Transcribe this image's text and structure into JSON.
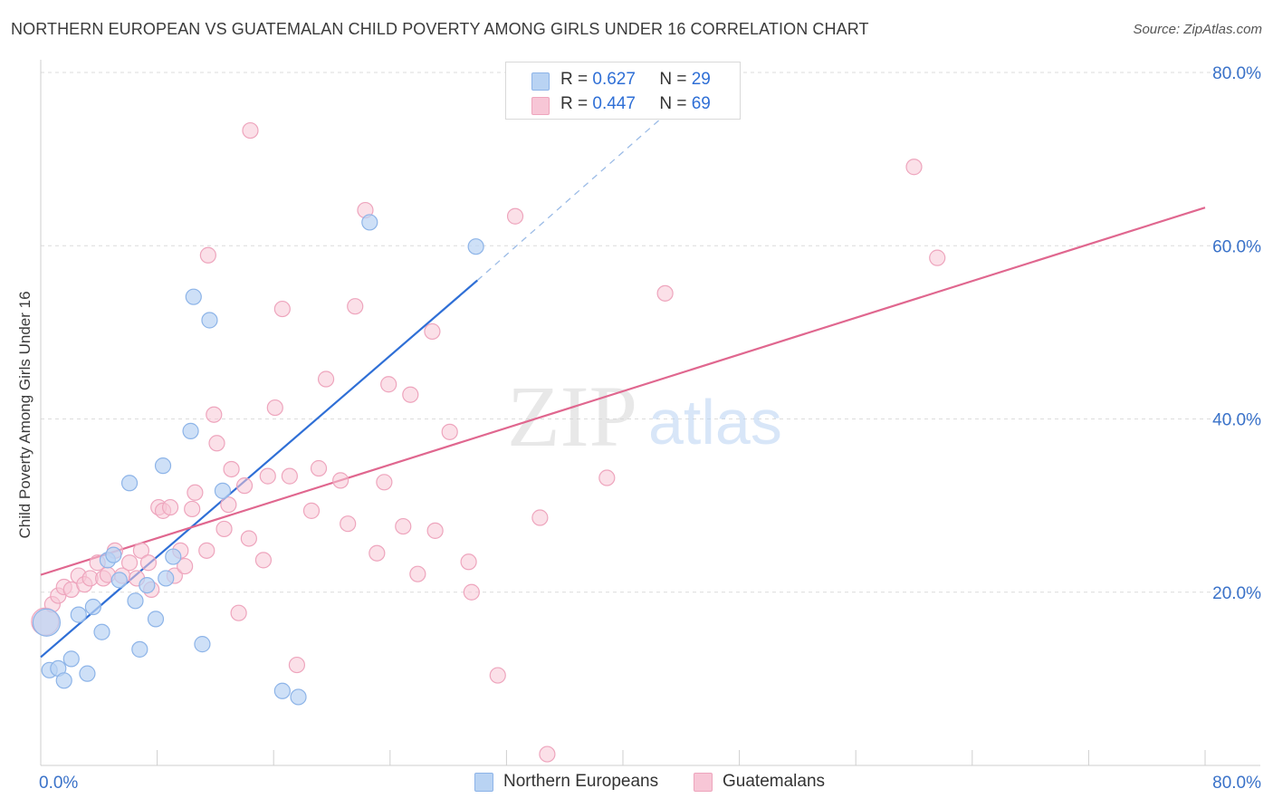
{
  "title": "NORTHERN EUROPEAN VS GUATEMALAN CHILD POVERTY AMONG GIRLS UNDER 16 CORRELATION CHART",
  "source": "Source: ZipAtlas.com",
  "watermark": {
    "zip": "ZIP",
    "atlas": "atlas"
  },
  "colors": {
    "blue_fill": "#b9d3f3",
    "blue_stroke": "#8db4e8",
    "blue_line": "#2f6fd6",
    "pink_fill": "#f7c6d6",
    "pink_stroke": "#eea5bd",
    "pink_line": "#e0678f",
    "axis_text": "#3a72c9",
    "grid": "#dcdcdc"
  },
  "legend": {
    "rows": [
      {
        "r_label": "R =",
        "r_value": "0.627",
        "n_label": "N =",
        "n_value": "29",
        "color": "#b9d3f3"
      },
      {
        "r_label": "R =",
        "r_value": "0.447",
        "n_label": "N =",
        "n_value": "69",
        "color": "#f7c6d6"
      }
    ]
  },
  "bottom_legend": [
    {
      "label": "Northern Europeans",
      "color": "#b9d3f3"
    },
    {
      "label": "Guatemalans",
      "color": "#f7c6d6"
    }
  ],
  "chart_data": {
    "type": "scatter",
    "xlabel": "",
    "ylabel": "Child Poverty Among Girls Under 16",
    "xlim": [
      0,
      80
    ],
    "ylim": [
      0,
      80
    ],
    "x_tick_labels": [
      {
        "value": 0,
        "label": "0.0%"
      },
      {
        "value": 80,
        "label": "80.0%"
      }
    ],
    "y_tick_labels": [
      {
        "value": 20,
        "label": "20.0%"
      },
      {
        "value": 40,
        "label": "40.0%"
      },
      {
        "value": 60,
        "label": "60.0%"
      },
      {
        "value": 80,
        "label": "80.0%"
      }
    ],
    "series": [
      {
        "name": "Northern Europeans",
        "r": 0.627,
        "n": 29,
        "points": [
          [
            0.4,
            16.5
          ],
          [
            0.6,
            11.0
          ],
          [
            1.2,
            11.2
          ],
          [
            1.6,
            9.8
          ],
          [
            2.1,
            12.3
          ],
          [
            2.6,
            17.4
          ],
          [
            3.2,
            10.6
          ],
          [
            3.6,
            18.3
          ],
          [
            4.2,
            15.4
          ],
          [
            4.6,
            23.7
          ],
          [
            5.0,
            24.3
          ],
          [
            5.4,
            21.4
          ],
          [
            6.1,
            32.6
          ],
          [
            6.5,
            19.0
          ],
          [
            6.8,
            13.4
          ],
          [
            7.3,
            20.8
          ],
          [
            7.9,
            16.9
          ],
          [
            8.4,
            34.6
          ],
          [
            8.6,
            21.6
          ],
          [
            9.1,
            24.1
          ],
          [
            10.3,
            38.6
          ],
          [
            10.5,
            54.1
          ],
          [
            11.1,
            14.0
          ],
          [
            11.6,
            51.4
          ],
          [
            12.5,
            31.7
          ],
          [
            16.6,
            8.6
          ],
          [
            17.7,
            7.9
          ],
          [
            22.6,
            62.7
          ],
          [
            29.9,
            59.9
          ]
        ],
        "trend": {
          "x_start": 0,
          "y_start": 12.5,
          "x_solid_end": 30.0,
          "y_solid_end": 56.0,
          "x_dash_end": 43.5,
          "y_dash_end": 76.0
        }
      },
      {
        "name": "Guatemalans",
        "r": 0.447,
        "n": 69,
        "points": [
          [
            0.3,
            16.6
          ],
          [
            0.8,
            18.6
          ],
          [
            1.2,
            19.6
          ],
          [
            1.6,
            20.6
          ],
          [
            2.1,
            20.3
          ],
          [
            2.6,
            21.9
          ],
          [
            3.0,
            20.9
          ],
          [
            3.4,
            21.6
          ],
          [
            3.9,
            23.4
          ],
          [
            4.3,
            21.6
          ],
          [
            4.6,
            22.0
          ],
          [
            5.1,
            24.8
          ],
          [
            5.6,
            21.9
          ],
          [
            6.1,
            23.4
          ],
          [
            6.6,
            21.6
          ],
          [
            6.9,
            24.8
          ],
          [
            7.4,
            23.4
          ],
          [
            7.6,
            20.3
          ],
          [
            8.1,
            29.8
          ],
          [
            8.4,
            29.4
          ],
          [
            8.9,
            29.8
          ],
          [
            9.2,
            21.9
          ],
          [
            9.6,
            24.8
          ],
          [
            9.9,
            23.0
          ],
          [
            10.4,
            29.6
          ],
          [
            10.6,
            31.5
          ],
          [
            11.4,
            24.8
          ],
          [
            11.9,
            40.5
          ],
          [
            12.1,
            37.2
          ],
          [
            12.6,
            27.3
          ],
          [
            12.9,
            30.1
          ],
          [
            13.1,
            34.2
          ],
          [
            13.6,
            17.6
          ],
          [
            14.0,
            32.3
          ],
          [
            14.3,
            26.2
          ],
          [
            15.3,
            23.7
          ],
          [
            15.6,
            33.4
          ],
          [
            16.1,
            41.3
          ],
          [
            16.6,
            52.7
          ],
          [
            17.1,
            33.4
          ],
          [
            17.6,
            11.6
          ],
          [
            18.6,
            29.4
          ],
          [
            19.1,
            34.3
          ],
          [
            19.6,
            44.6
          ],
          [
            20.6,
            32.9
          ],
          [
            21.1,
            27.9
          ],
          [
            21.6,
            53.0
          ],
          [
            22.3,
            64.1
          ],
          [
            23.1,
            24.5
          ],
          [
            23.6,
            32.7
          ],
          [
            23.9,
            44.0
          ],
          [
            24.9,
            27.6
          ],
          [
            25.4,
            42.8
          ],
          [
            25.9,
            22.1
          ],
          [
            26.9,
            50.1
          ],
          [
            27.1,
            27.1
          ],
          [
            28.1,
            38.5
          ],
          [
            29.4,
            23.5
          ],
          [
            29.6,
            20.0
          ],
          [
            31.4,
            10.4
          ],
          [
            32.6,
            63.4
          ],
          [
            34.3,
            28.6
          ],
          [
            34.8,
            1.3
          ],
          [
            38.9,
            33.2
          ],
          [
            42.9,
            54.5
          ],
          [
            60.0,
            69.1
          ],
          [
            11.5,
            58.9
          ],
          [
            14.4,
            73.3
          ],
          [
            61.6,
            58.6
          ]
        ],
        "trend": {
          "x_start": 0,
          "y_start": 22.0,
          "x_end": 80.0,
          "y_end": 64.4
        }
      }
    ]
  }
}
